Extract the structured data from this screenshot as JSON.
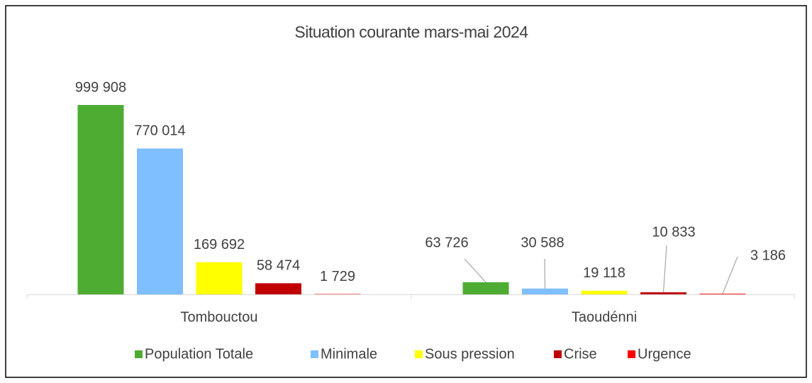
{
  "chart_data": {
    "type": "bar",
    "title": "Situation courante mars-mai 2024",
    "categories": [
      "Tombouctou",
      "Taoudénni"
    ],
    "series": [
      {
        "name": "Population Totale",
        "color": "#4eac33",
        "values": [
          999908,
          63726
        ],
        "value_labels": [
          "999 908",
          "63 726"
        ]
      },
      {
        "name": "Minimale",
        "color": "#7fbfff",
        "values": [
          770014,
          30588
        ],
        "value_labels": [
          "770 014",
          "30 588"
        ]
      },
      {
        "name": "Sous pression",
        "color": "#ffff00",
        "values": [
          169692,
          19118
        ],
        "value_labels": [
          "169 692",
          "19 118"
        ]
      },
      {
        "name": "Crise",
        "color": "#c00000",
        "values": [
          58474,
          10833
        ],
        "value_labels": [
          "58 474",
          "10 833"
        ]
      },
      {
        "name": "Urgence",
        "color": "#ff0000",
        "values": [
          1729,
          3186
        ],
        "value_labels": [
          "1 729",
          "3 186"
        ]
      }
    ],
    "legend": "bottom"
  }
}
